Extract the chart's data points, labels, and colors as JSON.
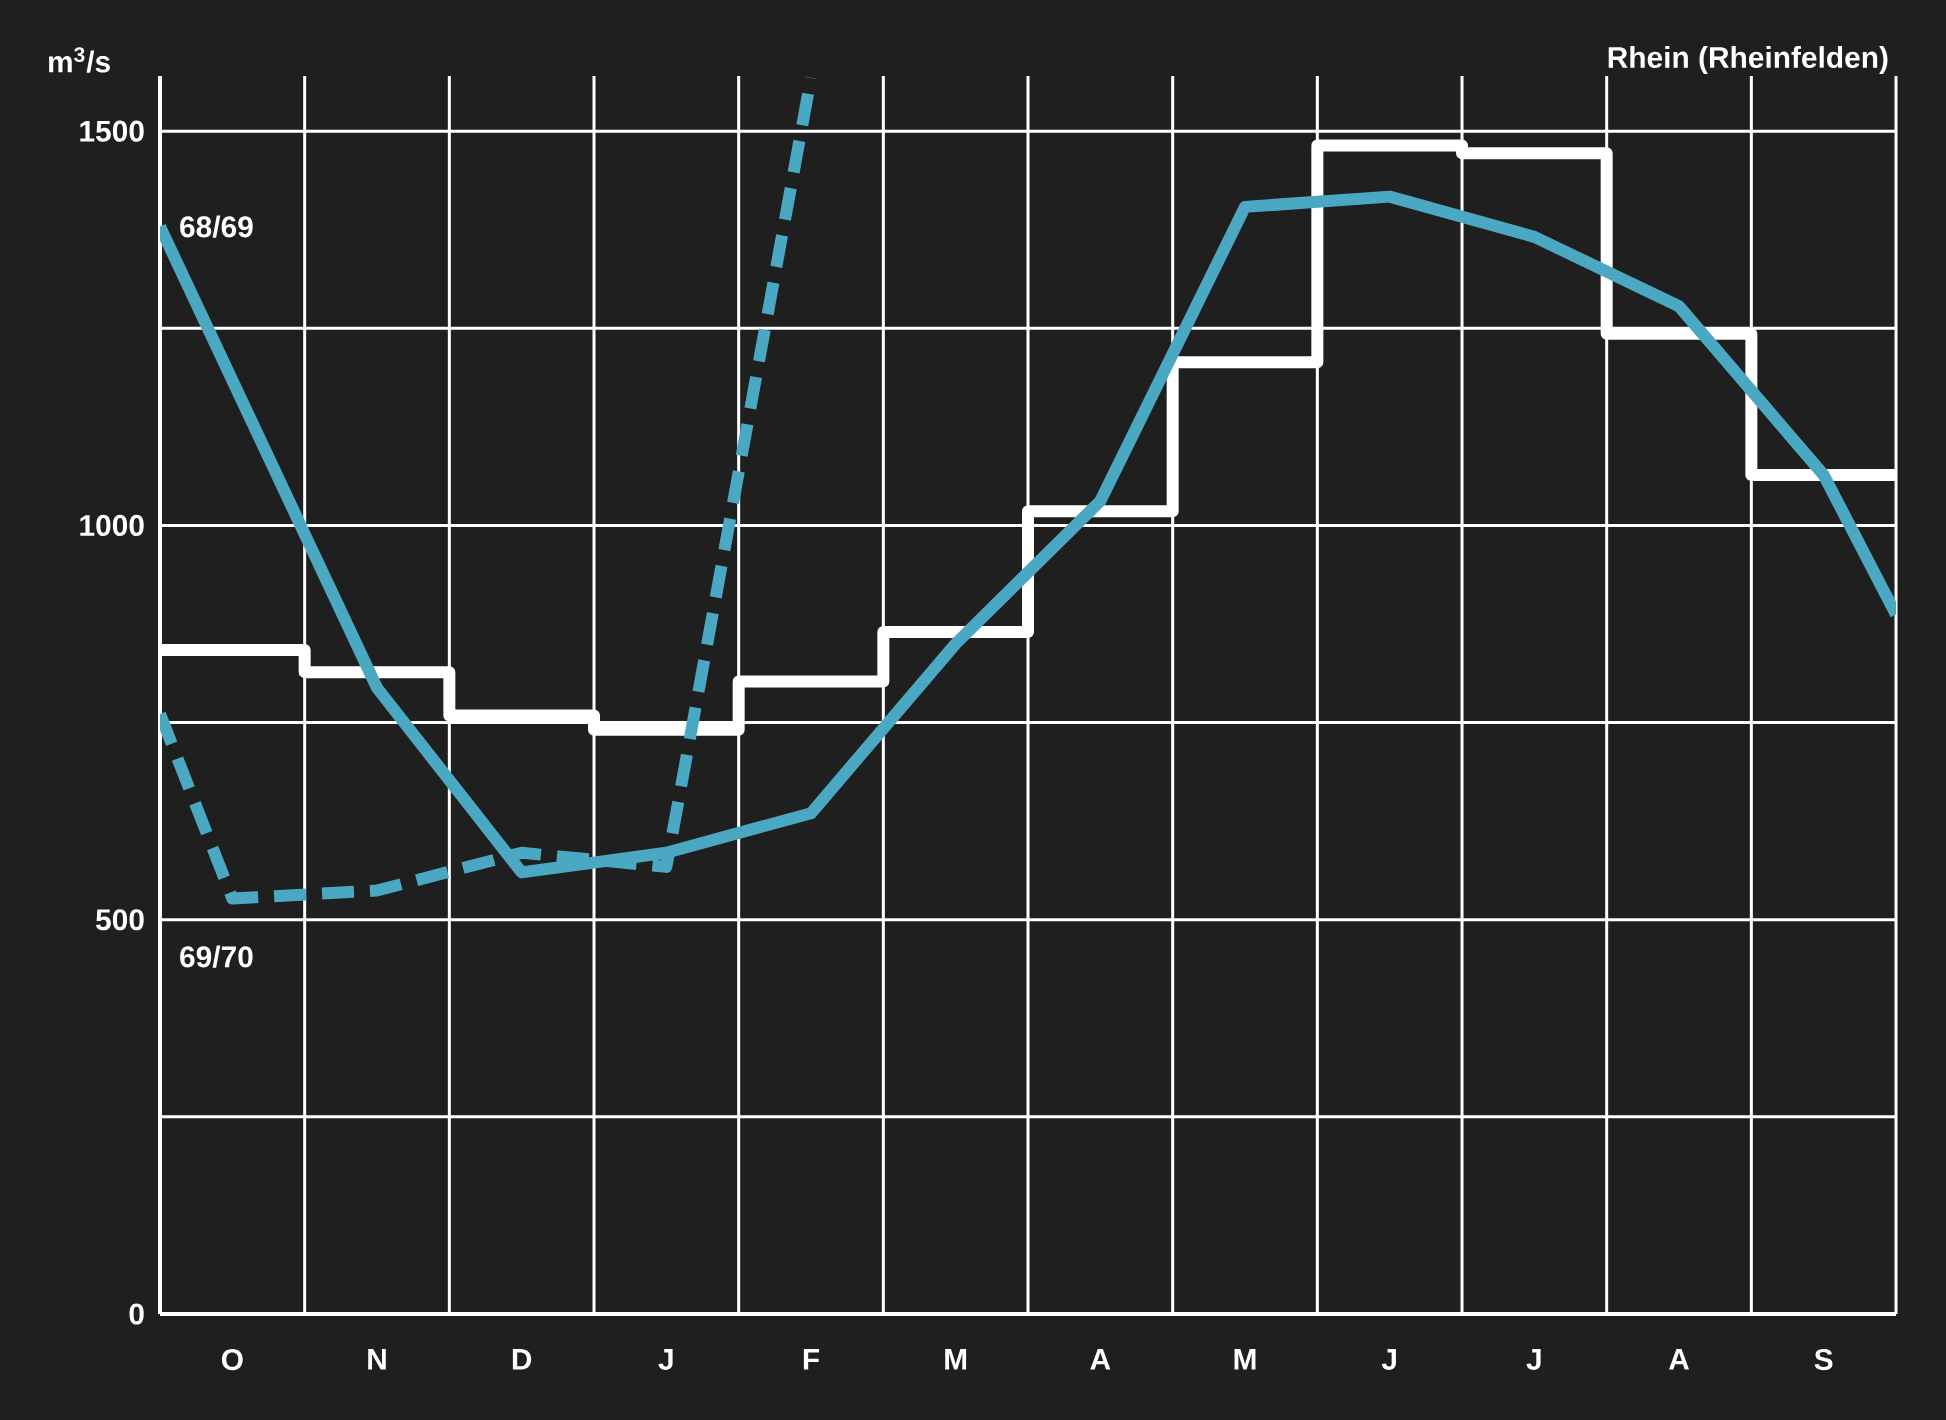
{
  "chart_data": {
    "type": "line",
    "title": "Rhein (Rheinfelden)",
    "ylabel": "m$^{3}$/s",
    "categories": [
      null,
      "O",
      null,
      "N",
      null,
      "D",
      null,
      "J",
      null,
      "F",
      null,
      "M",
      null,
      "A",
      null,
      "M",
      null,
      "J",
      null,
      "J",
      null,
      "A",
      null,
      "S",
      null
    ],
    "ylim": [
      0,
      1570
    ],
    "yticks": [
      0,
      {
        "value": 250,
        "label": null
      },
      500,
      {
        "value": 750,
        "label": null
      },
      1000,
      {
        "value": 1250,
        "label": null
      },
      1500
    ],
    "grid": true,
    "marker": "none",
    "series": [
      {
        "type": "step",
        "color": "#ffffff",
        "values": [
          842,
          null,
          814,
          null,
          759,
          null,
          741,
          null,
          802,
          null,
          865,
          null,
          1018,
          null,
          1207,
          null,
          1482,
          null,
          1472,
          null,
          1243,
          null,
          1064,
          null,
          1064
        ]
      },
      {
        "name": "68/69",
        "color": "#4aa8c2",
        "line_style": "solid",
        "values": [
          1379,
          null,
          null,
          794,
          null,
          560,
          null,
          585,
          null,
          635,
          null,
          850,
          null,
          1031,
          null,
          1404,
          null,
          1417,
          null,
          1366,
          null,
          1278,
          null,
          1064,
          887
        ]
      },
      {
        "name": "69/70",
        "color": "#4aa8c2",
        "line_style": "dashed",
        "values": [
          761,
          527,
          null,
          537,
          null,
          585,
          null,
          567,
          null,
          1568,
          null,
          null,
          null,
          null,
          null,
          null,
          null,
          null,
          null,
          null,
          null,
          null,
          null,
          null,
          null
        ]
      }
    ]
  }
}
